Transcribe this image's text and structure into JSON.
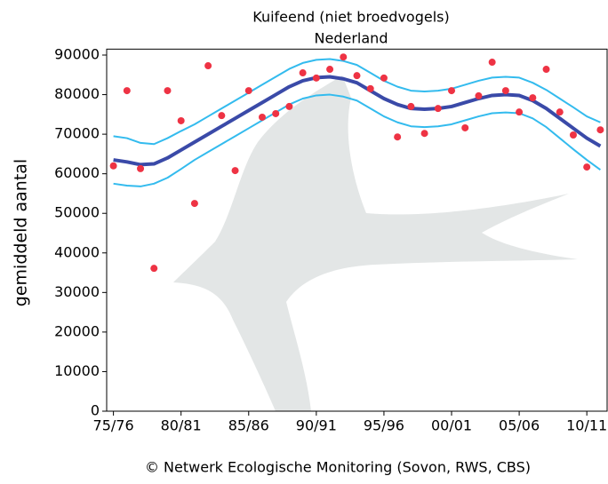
{
  "chart_data": {
    "type": "line",
    "title": "Kuifeend (niet broedvogels)",
    "subtitle": "Nederland",
    "y_label": "gemiddeld aantal",
    "footer": "© Netwerk Ecologische Monitoring (Sovon, RWS, CBS)",
    "x": [
      1975,
      1976,
      1977,
      1978,
      1979,
      1980,
      1981,
      1982,
      1983,
      1984,
      1985,
      1986,
      1987,
      1988,
      1989,
      1990,
      1991,
      1992,
      1993,
      1994,
      1995,
      1996,
      1997,
      1998,
      1999,
      2000,
      2001,
      2002,
      2003,
      2004,
      2005,
      2006,
      2007,
      2008,
      2009,
      2010,
      2011
    ],
    "series": [
      {
        "type": "line",
        "color": "#33bbee",
        "width": 2,
        "values": [
          69500,
          69000,
          67800,
          67500,
          69000,
          70800,
          72500,
          74500,
          76500,
          78500,
          80500,
          82500,
          84500,
          86500,
          88000,
          88800,
          89000,
          88500,
          87500,
          85500,
          83500,
          82000,
          81000,
          80800,
          81000,
          81500,
          82500,
          83500,
          84300,
          84500,
          84300,
          83000,
          81200,
          79000,
          76800,
          74500,
          73000
        ]
      },
      {
        "type": "line",
        "color": "#33bbee",
        "width": 2,
        "values": [
          57500,
          57000,
          56800,
          57500,
          59000,
          61200,
          63500,
          65500,
          67500,
          69500,
          71500,
          73500,
          75500,
          77500,
          79000,
          79800,
          80000,
          79500,
          78500,
          76500,
          74500,
          73000,
          72000,
          71800,
          72000,
          72500,
          73500,
          74500,
          75300,
          75500,
          75300,
          74000,
          71800,
          69000,
          66200,
          63500,
          61000
        ]
      },
      {
        "type": "line",
        "color": "#3a4aa8",
        "width": 4,
        "values": [
          63500,
          63000,
          62300,
          62500,
          64000,
          66000,
          68000,
          70000,
          72000,
          74000,
          76000,
          78000,
          80000,
          82000,
          83500,
          84300,
          84500,
          84000,
          83000,
          81000,
          79000,
          77500,
          76500,
          76300,
          76500,
          77000,
          78000,
          79000,
          79800,
          80000,
          79800,
          78500,
          76500,
          74000,
          71500,
          69000,
          67000
        ]
      },
      {
        "type": "scatter",
        "color": "#ee3344",
        "values": [
          62000,
          81000,
          61300,
          36100,
          81000,
          73400,
          52500,
          87300,
          74700,
          60800,
          81000,
          74300,
          75200,
          77000,
          85500,
          84200,
          86400,
          89500,
          84800,
          81500,
          84200,
          69300,
          77000,
          70200,
          76500,
          81000,
          71600,
          79700,
          88200,
          81000,
          75600,
          79200,
          86400,
          75600,
          69800,
          61700,
          71100
        ]
      }
    ],
    "xlim": [
      1974.5,
      2011.5
    ],
    "xticks": [
      {
        "value": 1975,
        "label": "75/76"
      },
      {
        "value": 1980,
        "label": "80/81"
      },
      {
        "value": 1985,
        "label": "85/86"
      },
      {
        "value": 1990,
        "label": "90/91"
      },
      {
        "value": 1995,
        "label": "95/96"
      },
      {
        "value": 2000,
        "label": "00/01"
      },
      {
        "value": 2005,
        "label": "05/06"
      },
      {
        "value": 2010,
        "label": "10/11"
      }
    ],
    "ylim": [
      0,
      91500
    ],
    "yticks": [
      0,
      10000,
      20000,
      30000,
      40000,
      50000,
      60000,
      70000,
      80000,
      90000
    ]
  }
}
